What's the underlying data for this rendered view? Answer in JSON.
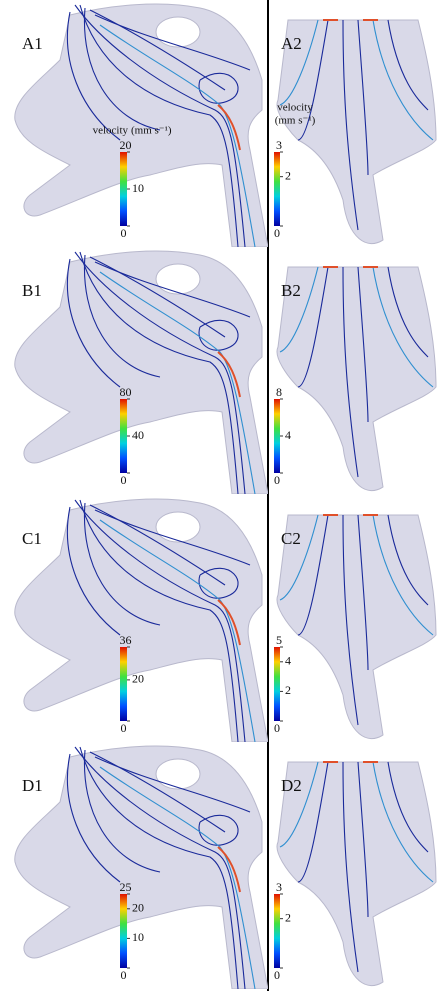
{
  "colorbar_title": [
    "velocity",
    "(mm s⁻¹)"
  ],
  "panels": [
    {
      "label": "A1",
      "clim": [
        0,
        20
      ],
      "ticks": [
        0,
        10,
        20
      ]
    },
    {
      "label": "A2",
      "clim": [
        0,
        3
      ],
      "ticks": [
        0,
        2,
        3
      ]
    },
    {
      "label": "B1",
      "clim": [
        0,
        80
      ],
      "ticks": [
        0,
        40,
        80
      ]
    },
    {
      "label": "B2",
      "clim": [
        0,
        8
      ],
      "ticks": [
        0,
        4,
        8
      ]
    },
    {
      "label": "C1",
      "clim": [
        0,
        36
      ],
      "ticks": [
        0,
        20,
        36
      ]
    },
    {
      "label": "C2",
      "clim": [
        0,
        5
      ],
      "ticks": [
        0,
        2,
        4,
        5
      ]
    },
    {
      "label": "D1",
      "clim": [
        0,
        25
      ],
      "ticks": [
        0,
        10,
        20,
        25
      ]
    },
    {
      "label": "D2",
      "clim": [
        0,
        3
      ],
      "ticks": [
        0,
        2,
        3
      ]
    }
  ]
}
